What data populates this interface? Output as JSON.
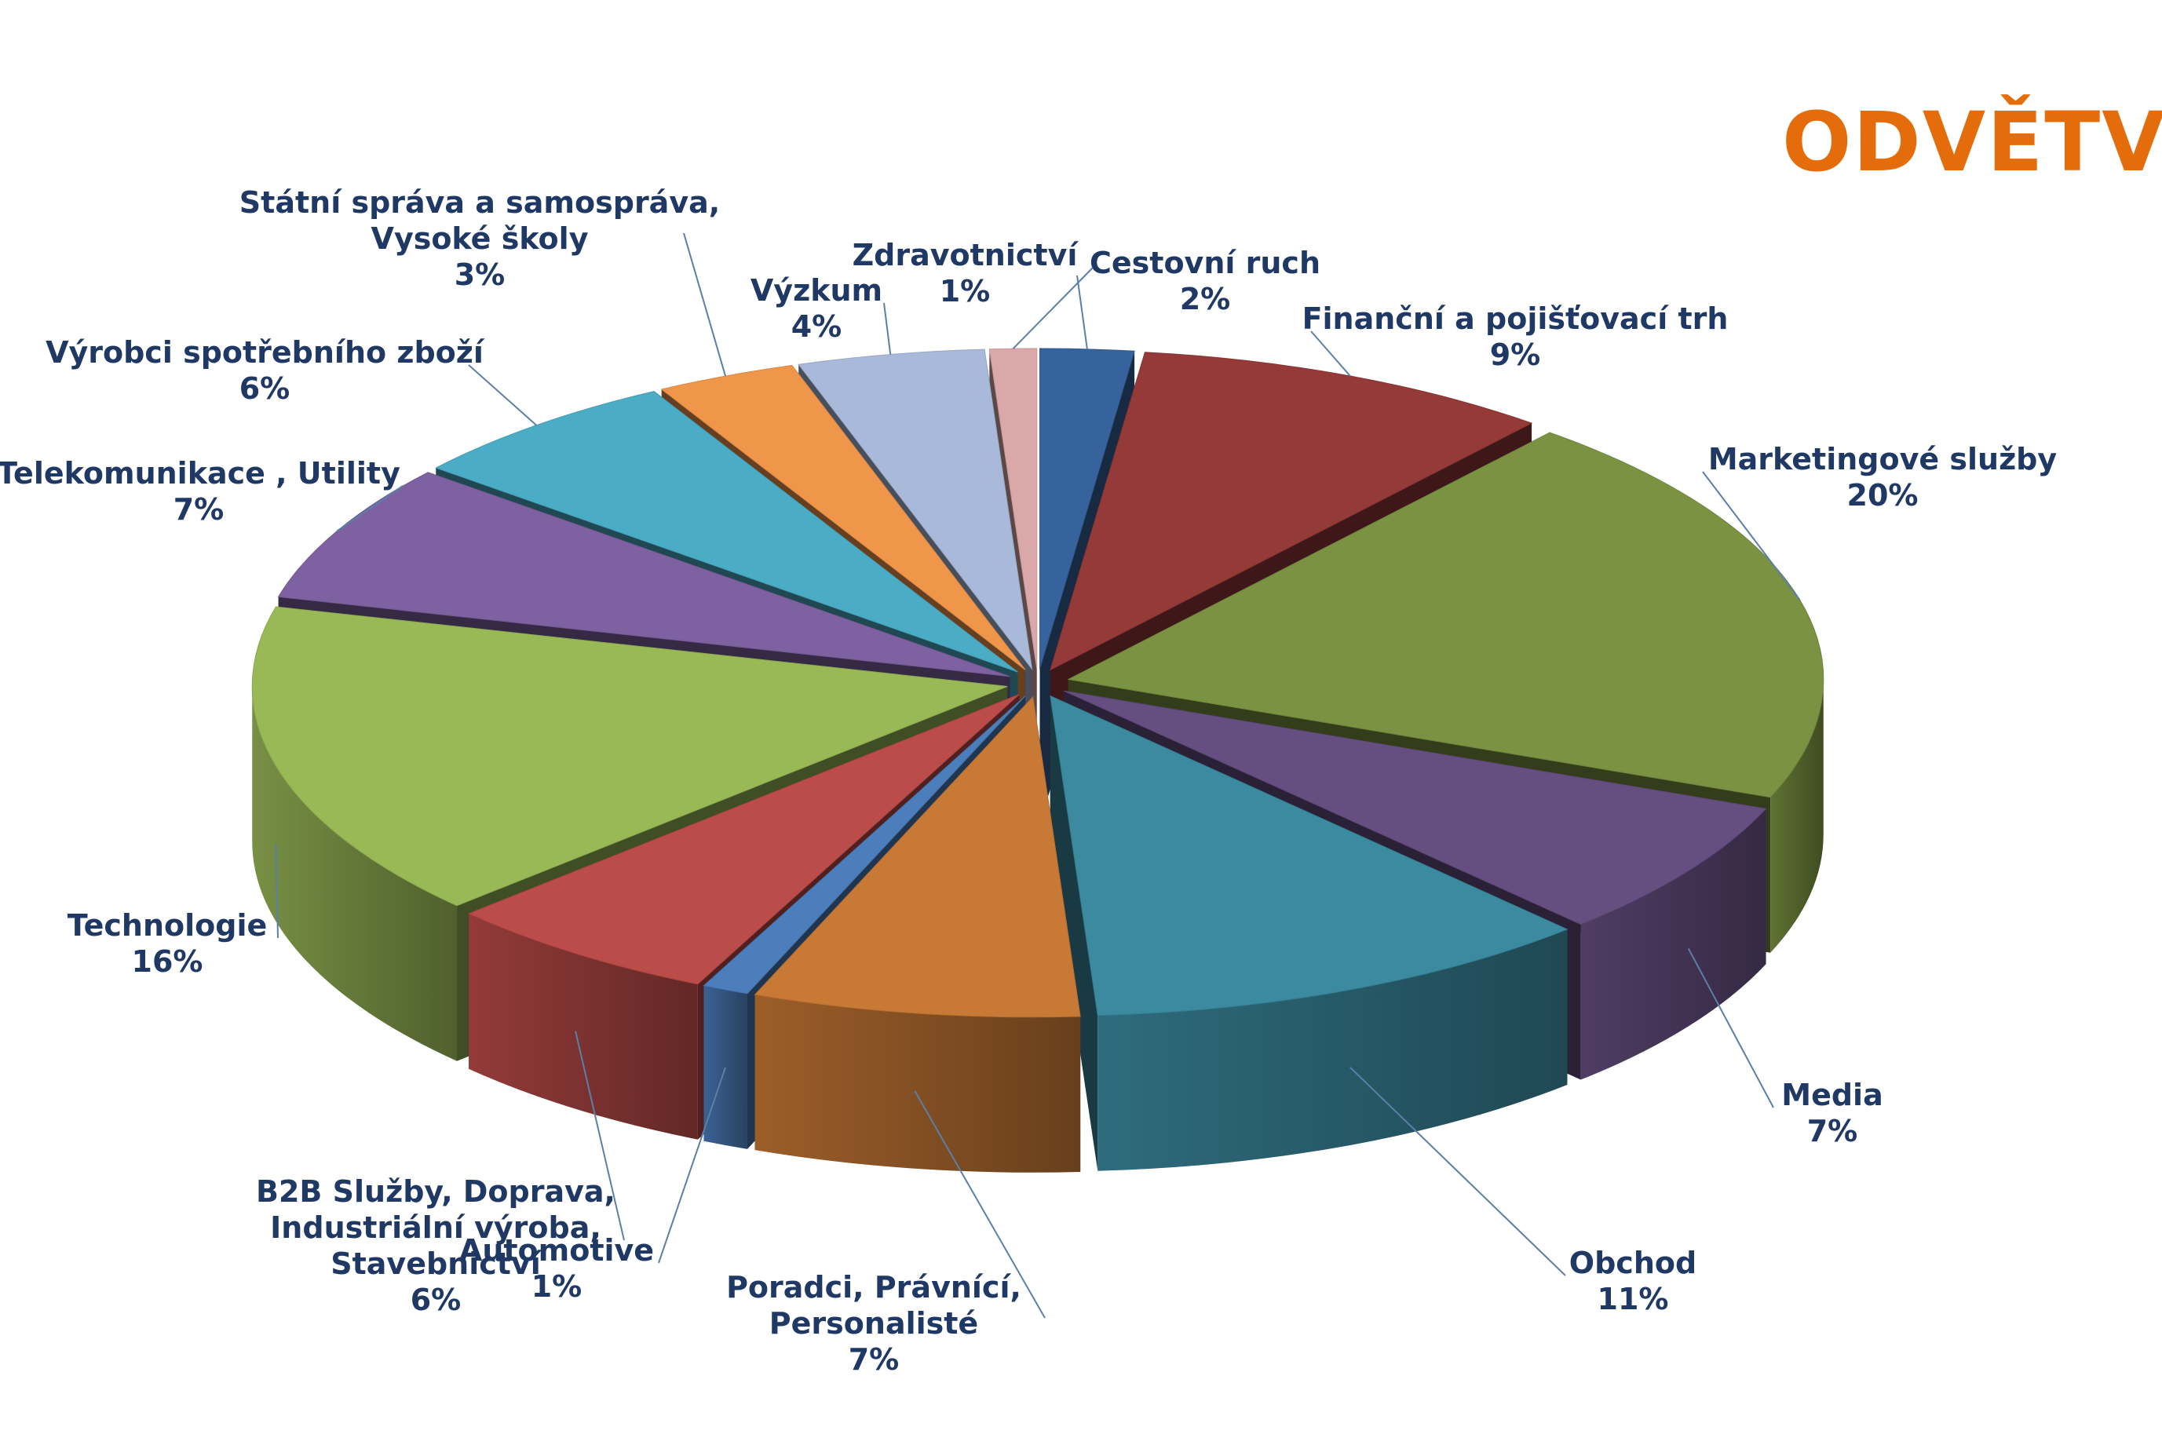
{
  "colors": {
    "title": "#E46C0A",
    "label": "#1F3864",
    "leader": "#5B7FA6"
  },
  "chart_data": {
    "type": "pie",
    "title": "ODVĚTVÍ",
    "unit": "%",
    "slices": [
      {
        "label": [
          "Cestovní ruch"
        ],
        "value": 2,
        "value_label": "2%",
        "color": "#36639C"
      },
      {
        "label": [
          "Finanční a pojišťovací trh"
        ],
        "value": 9,
        "value_label": "9%",
        "color": "#943A38"
      },
      {
        "label": [
          "Marketingové služby"
        ],
        "value": 20,
        "value_label": "20%",
        "color": "#7A9242"
      },
      {
        "label": [
          "Media"
        ],
        "value": 7,
        "value_label": "7%",
        "color": "#654E80"
      },
      {
        "label": [
          "Obchod"
        ],
        "value": 11,
        "value_label": "11%",
        "color": "#3B8AA0"
      },
      {
        "label": [
          "Poradci, Právnící,",
          "Personalisté"
        ],
        "value": 7,
        "value_label": "7%",
        "color": "#C87935"
      },
      {
        "label": [
          "Automotive"
        ],
        "value": 1,
        "value_label": "1%",
        "color": "#4C7EBC"
      },
      {
        "label": [
          "B2B Služby, Doprava,",
          "Industriální výroba,",
          "Stavebnictví"
        ],
        "value": 6,
        "value_label": "6%",
        "color": "#BC4C49"
      },
      {
        "label": [
          "Technologie"
        ],
        "value": 16,
        "value_label": "16%",
        "color": "#99B957"
      },
      {
        "label": [
          "Telekomunikace , Utility"
        ],
        "value": 7,
        "value_label": "7%",
        "color": "#7D61A0"
      },
      {
        "label": [
          "Výrobci spotřebního zboží"
        ],
        "value": 6,
        "value_label": "6%",
        "color": "#4BACC5"
      },
      {
        "label": [
          "Státní správa a samospráva,",
          "Vysoké školy"
        ],
        "value": 3,
        "value_label": "3%",
        "color": "#F0964A"
      },
      {
        "label": [
          "Výzkum"
        ],
        "value": 4,
        "value_label": "4%",
        "color": "#A9B9DA"
      },
      {
        "label": [
          "Zdravotnictví"
        ],
        "value": 1,
        "value_label": "1%",
        "color": "#DBA8A9"
      }
    ]
  }
}
